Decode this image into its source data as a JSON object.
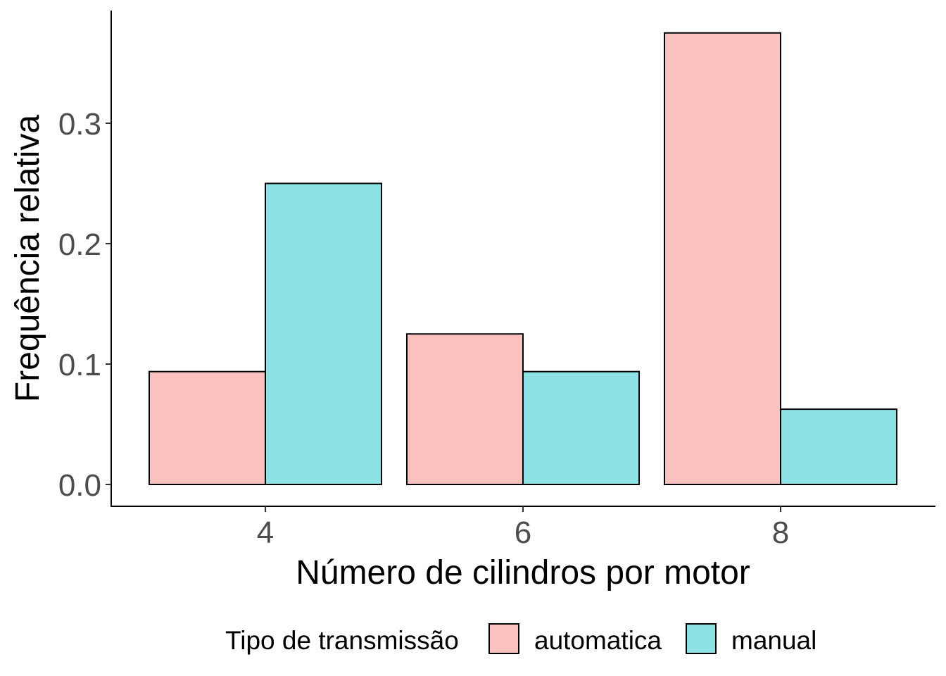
{
  "chart_data": {
    "type": "bar",
    "xlabel": "Número de cilindros por motor",
    "ylabel": "Frequência relativa",
    "categories": [
      "4",
      "6",
      "8"
    ],
    "series": [
      {
        "name": "automatica",
        "color": "#FBC1BF",
        "values": [
          0.09375,
          0.125,
          0.375
        ]
      },
      {
        "name": "manual",
        "color": "#8DE2E4",
        "values": [
          0.25,
          0.09375,
          0.0625
        ]
      }
    ],
    "ylim": [
      0,
      0.38
    ],
    "yticks": [
      0.0,
      0.1,
      0.2,
      0.3
    ],
    "ytick_labels": [
      "0.0",
      "0.1",
      "0.2",
      "0.3"
    ],
    "grid": false,
    "legend": {
      "title": "Tipo de transmissão",
      "placement": "bottom"
    }
  }
}
